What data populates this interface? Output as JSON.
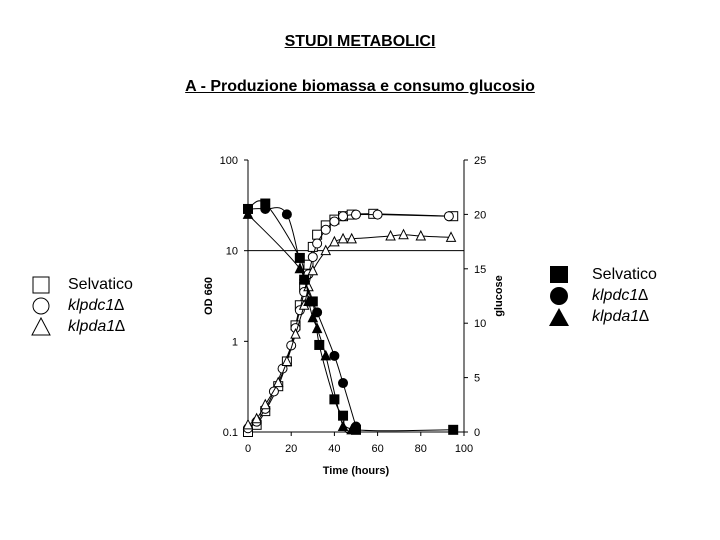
{
  "page": {
    "title": "STUDI METABOLICI",
    "subtitle": "A - Produzione biomassa e consumo glucosio"
  },
  "legend_open": {
    "items": [
      {
        "marker": "square-open",
        "label": "Selvatico",
        "italic": false
      },
      {
        "marker": "circle-open",
        "label": "klpdc1∆",
        "italic": true
      },
      {
        "marker": "triangle-open",
        "label": "klpda1∆",
        "italic": true
      }
    ]
  },
  "legend_filled": {
    "items": [
      {
        "marker": "square-filled",
        "label": "Selvatico",
        "italic": false
      },
      {
        "marker": "circle-filled",
        "label": "klpdc1∆",
        "italic": true
      },
      {
        "marker": "triangle-filled",
        "label": "klpda1∆",
        "italic": true
      }
    ]
  },
  "chart_data": {
    "type": "scatter",
    "xlabel": "Time (hours)",
    "ylabel_left": "OD 660",
    "ylabel_right": "glucose",
    "x_ticks": [
      0,
      20,
      40,
      60,
      80,
      100
    ],
    "x_tick_labels": [
      "0",
      "20",
      "40",
      "60",
      "80",
      "100"
    ],
    "xlim": [
      0,
      100
    ],
    "y_left_scale": "log",
    "y_left_ticks": [
      0.1,
      1,
      10,
      100
    ],
    "y_left_tick_labels": [
      "0.1",
      "1",
      "10",
      "100"
    ],
    "ylim_left": [
      0.1,
      100
    ],
    "y_right_ticks": [
      0,
      5,
      10,
      15,
      20,
      25
    ],
    "y_right_tick_labels": [
      "0",
      "5",
      "10",
      "15",
      "20",
      "25"
    ],
    "ylim_right": [
      0,
      25
    ],
    "gridline_left_value": 10,
    "colors": {
      "line": "#000000",
      "fill": "#000000",
      "open": "#ffffff"
    },
    "series": [
      {
        "name": "Selvatico OD 660",
        "axis": "left",
        "marker": "square-open",
        "x": [
          0,
          4,
          8,
          14,
          18,
          22,
          24,
          26,
          28,
          30,
          32,
          36,
          40,
          44,
          48,
          58,
          95
        ],
        "y": [
          0.1,
          0.12,
          0.17,
          0.32,
          0.6,
          1.5,
          2.5,
          4,
          7,
          11,
          15,
          19,
          22,
          24,
          25,
          25.5,
          24
        ]
      },
      {
        "name": "klpdc1∆ OD 660",
        "axis": "left",
        "marker": "circle-open",
        "x": [
          0,
          4,
          8,
          12,
          16,
          20,
          22,
          24,
          26,
          28,
          30,
          32,
          36,
          40,
          44,
          50,
          60,
          93
        ],
        "y": [
          0.11,
          0.13,
          0.18,
          0.28,
          0.5,
          0.9,
          1.4,
          2.2,
          3.5,
          5.5,
          8.5,
          12,
          17,
          21,
          24,
          25,
          25,
          24
        ]
      },
      {
        "name": "klpda1∆ OD 660",
        "axis": "left",
        "marker": "triangle-open",
        "x": [
          0,
          4,
          8,
          14,
          18,
          22,
          26,
          28,
          30,
          36,
          40,
          44,
          48,
          66,
          72,
          80,
          94
        ],
        "y": [
          0.12,
          0.14,
          0.2,
          0.35,
          0.6,
          1.2,
          2.5,
          4,
          6,
          10,
          12.5,
          13.5,
          13.5,
          14.5,
          15,
          14.5,
          14
        ]
      },
      {
        "name": "Selvatico glucose",
        "axis": "right",
        "marker": "square-filled",
        "x": [
          0,
          8,
          24,
          26,
          30,
          33,
          40,
          44,
          50,
          95
        ],
        "y": [
          20.5,
          21,
          16,
          14,
          12,
          8,
          3,
          1.5,
          0.2,
          0.2
        ]
      },
      {
        "name": "klpdc1∆ glucose",
        "axis": "right",
        "marker": "circle-filled",
        "x": [
          0,
          8,
          18,
          26,
          32,
          40,
          44,
          50
        ],
        "y": [
          20.5,
          20.5,
          20,
          14,
          11,
          7,
          4.5,
          0.5
        ]
      },
      {
        "name": "klpda1∆ glucose",
        "axis": "right",
        "marker": "triangle-filled",
        "x": [
          0,
          24,
          28,
          30,
          32,
          36,
          44,
          48
        ],
        "y": [
          20,
          15,
          12,
          10.5,
          9.5,
          7,
          0.5,
          0.2
        ]
      }
    ]
  }
}
